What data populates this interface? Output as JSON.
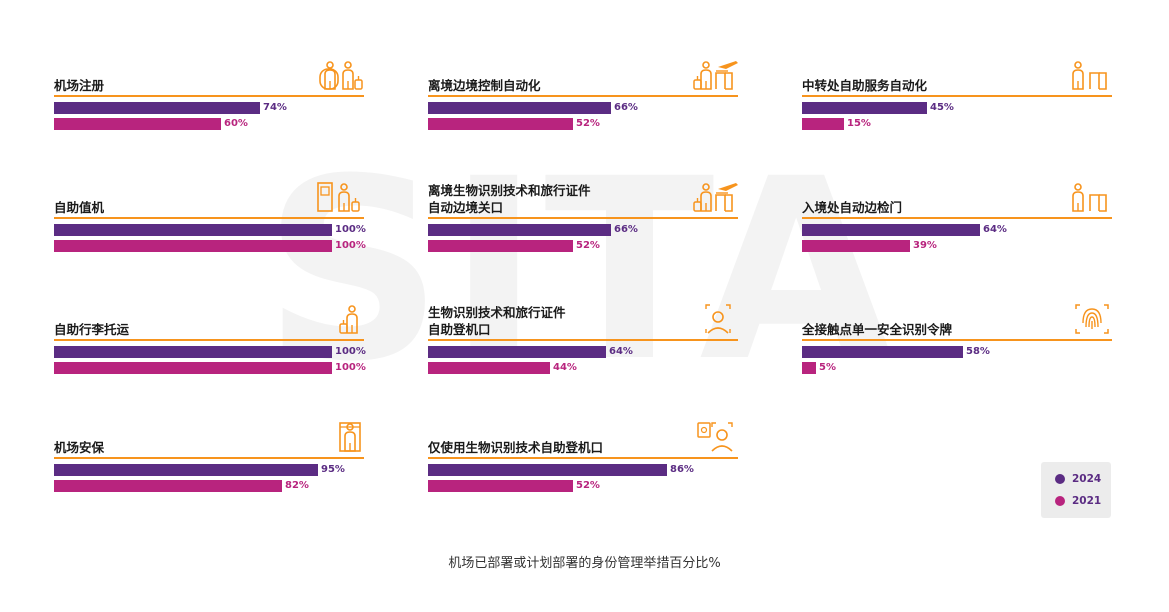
{
  "watermark": "SITA",
  "caption": "机场已部署或计划部署的身份管理举措百分比%",
  "colors": {
    "y2024": "#5b2c83",
    "y2021": "#b8247e",
    "accent": "#f7941d"
  },
  "legend": [
    {
      "label": "2024",
      "color": "#5b2c83"
    },
    {
      "label": "2021",
      "color": "#b8247e"
    }
  ],
  "chart_data": {
    "type": "bar",
    "orientation": "horizontal",
    "ylim": [
      0,
      100
    ],
    "series_names": [
      "2024",
      "2021"
    ],
    "categories": [
      {
        "label": "机场注册",
        "icon": "check-in-people-icon",
        "values": {
          "2024": 74,
          "2021": 60
        },
        "labels": [
          "74%",
          "60%"
        ]
      },
      {
        "label": "离境边境控制自动化",
        "icon": "departure-border-icon",
        "values": {
          "2024": 66,
          "2021": 52
        },
        "labels": [
          "66%",
          "52%"
        ]
      },
      {
        "label": "中转处自助服务自动化",
        "icon": "transfer-gate-icon",
        "values": {
          "2024": 45,
          "2021": 15
        },
        "labels": [
          "45%",
          "15%"
        ]
      },
      {
        "label": "自助值机",
        "icon": "kiosk-icon",
        "values": {
          "2024": 100,
          "2021": 100
        },
        "labels": [
          "100%",
          "100%"
        ]
      },
      {
        "label": "离境生物识别技术和旅行证件\n自动边境关口",
        "icon": "departure-biometric-icon",
        "values": {
          "2024": 66,
          "2021": 52
        },
        "labels": [
          "66%",
          "52%"
        ]
      },
      {
        "label": "入境处自动边检门",
        "icon": "arrival-gate-icon",
        "values": {
          "2024": 64,
          "2021": 39
        },
        "labels": [
          "64%",
          "39%"
        ]
      },
      {
        "label": "自助行李托运",
        "icon": "bag-drop-icon",
        "values": {
          "2024": 100,
          "2021": 100
        },
        "labels": [
          "100%",
          "100%"
        ]
      },
      {
        "label": "生物识别技术和旅行证件\n自助登机口",
        "icon": "face-scan-icon",
        "values": {
          "2024": 64,
          "2021": 44
        },
        "labels": [
          "64%",
          "44%"
        ]
      },
      {
        "label": "全接触点单一安全识别令牌",
        "icon": "fingerprint-icon",
        "values": {
          "2024": 58,
          "2021": 5
        },
        "labels": [
          "58%",
          "5%"
        ]
      },
      {
        "label": "机场安保",
        "icon": "security-scanner-icon",
        "values": {
          "2024": 95,
          "2021": 82
        },
        "labels": [
          "95%",
          "82%"
        ]
      },
      {
        "label": "仅使用生物识别技术自助登机口",
        "icon": "biometric-boarding-icon",
        "values": {
          "2024": 86,
          "2021": 52
        },
        "labels": [
          "86%",
          "52%"
        ]
      }
    ]
  }
}
